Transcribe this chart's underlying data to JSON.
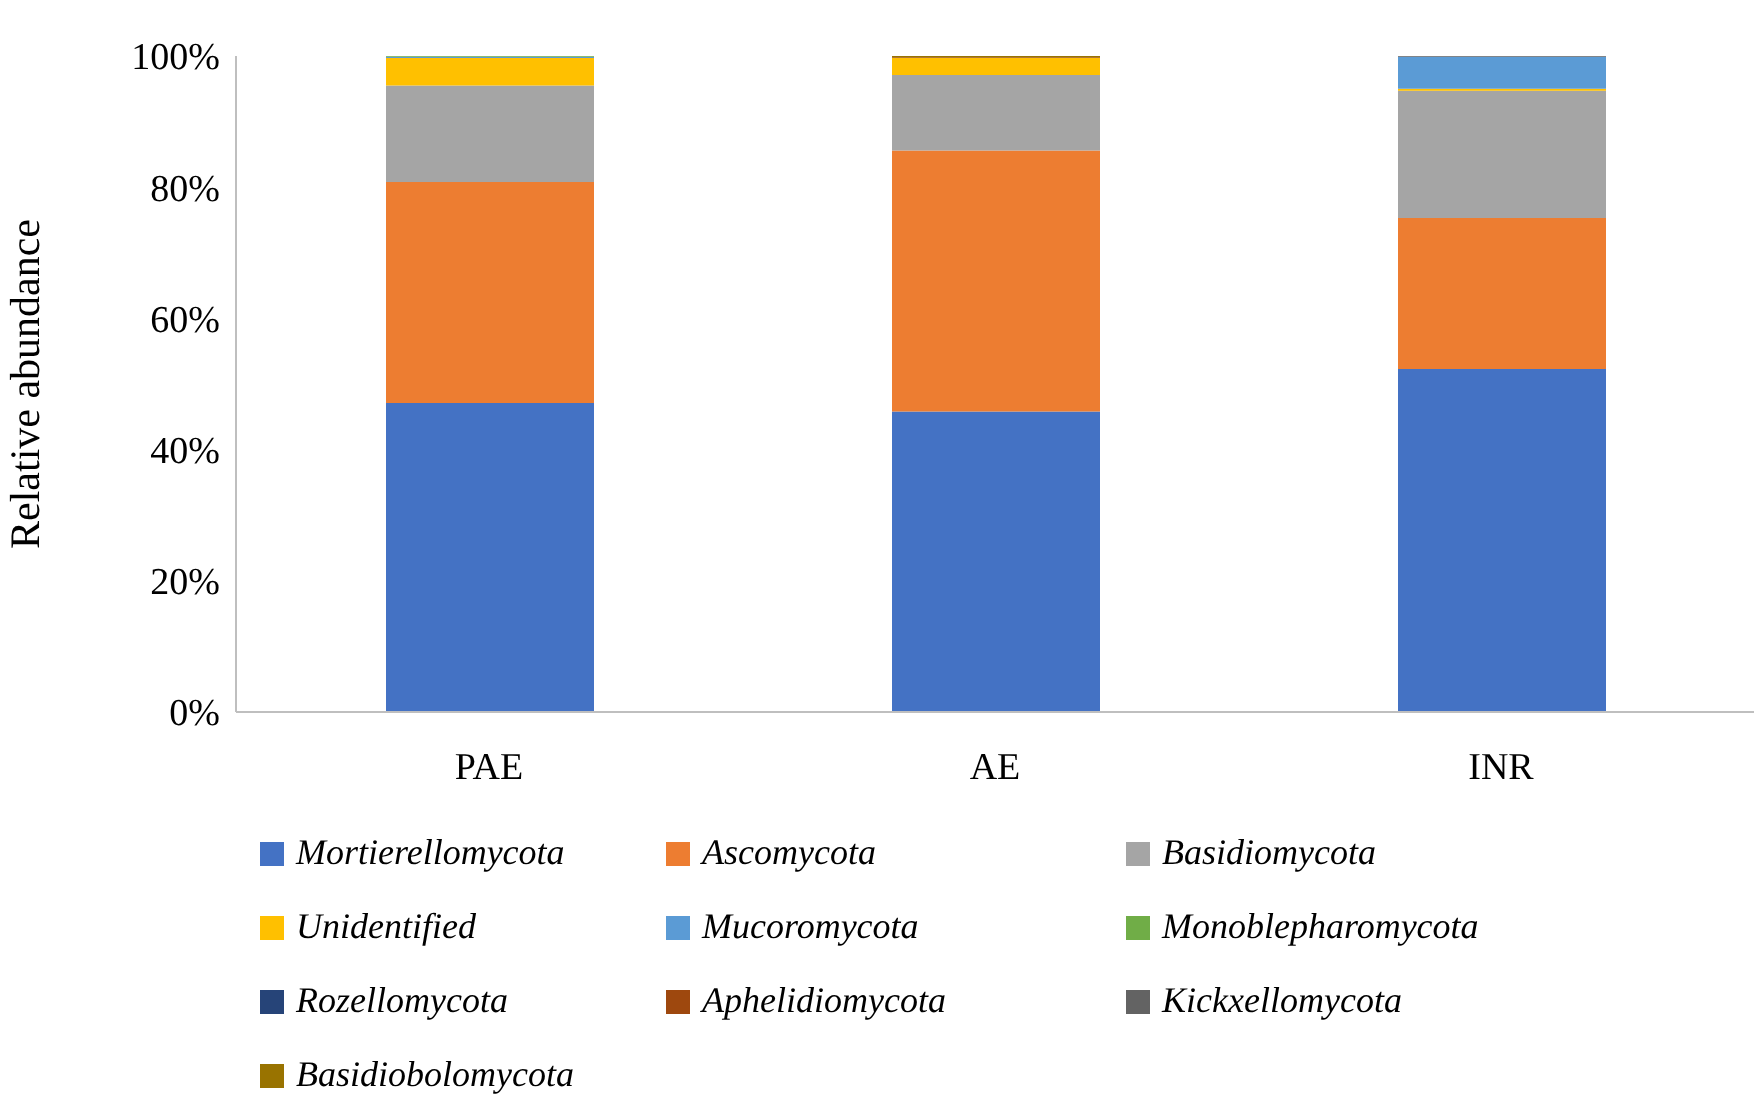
{
  "chart_data": {
    "type": "bar",
    "stacked": true,
    "ylabel": "Relative abundance",
    "categories": [
      "PAE",
      "AE",
      "INR"
    ],
    "ylim": [
      0,
      100
    ],
    "yticks": [
      {
        "value": 0,
        "label": "0%"
      },
      {
        "value": 20,
        "label": "20%"
      },
      {
        "value": 40,
        "label": "40%"
      },
      {
        "value": 60,
        "label": "60%"
      },
      {
        "value": 80,
        "label": "80%"
      },
      {
        "value": 100,
        "label": "100%"
      }
    ],
    "legend": "bottom",
    "series": [
      {
        "name": "Mortierellomycota",
        "color": "#4472c4",
        "values": [
          47.1,
          45.8,
          52.3
        ]
      },
      {
        "name": "Ascomycota",
        "color": "#ed7d31",
        "values": [
          33.7,
          39.8,
          23.0
        ]
      },
      {
        "name": "Basidiomycota",
        "color": "#a5a5a5",
        "values": [
          14.7,
          11.5,
          19.4
        ]
      },
      {
        "name": "Unidentified",
        "color": "#ffc000",
        "values": [
          4.2,
          2.6,
          0.3
        ]
      },
      {
        "name": "Mucoromycota",
        "color": "#5b9bd5",
        "values": [
          0.2,
          0.0,
          4.9
        ]
      },
      {
        "name": "Monoblepharomycota",
        "color": "#70ad47",
        "values": [
          0.1,
          0.0,
          0.0
        ]
      },
      {
        "name": "Rozellomycota",
        "color": "#264478",
        "values": [
          0.0,
          0.0,
          0.0
        ]
      },
      {
        "name": "Aphelidiomycota",
        "color": "#9e480e",
        "values": [
          0.0,
          0.1,
          0.0
        ]
      },
      {
        "name": "Kickxellomycota",
        "color": "#636363",
        "values": [
          0.0,
          0.0,
          0.1
        ]
      },
      {
        "name": "Basidiobolomycota",
        "color": "#997300",
        "values": [
          0.0,
          0.2,
          0.0
        ]
      }
    ]
  }
}
